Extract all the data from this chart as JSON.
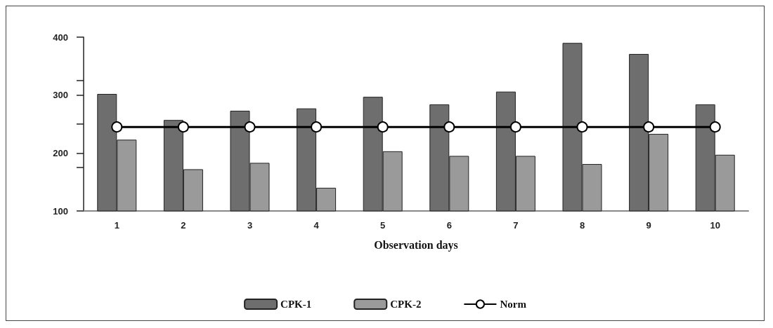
{
  "chart_data": {
    "type": "bar",
    "xlabel": "Observation days",
    "categories": [
      "1",
      "2",
      "3",
      "4",
      "5",
      "6",
      "7",
      "8",
      "9",
      "10"
    ],
    "series": [
      {
        "name": "CPK-1",
        "color": "#6e6e6e",
        "values": [
          302,
          257,
          273,
          277,
          297,
          284,
          306,
          390,
          371,
          284
        ]
      },
      {
        "name": "CPK-2",
        "color": "#9a9a9a",
        "values": [
          223,
          172,
          183,
          140,
          203,
          195,
          195,
          181,
          233,
          197
        ]
      },
      {
        "name": "Norm",
        "type": "line",
        "color": "#000000",
        "marker": "circle",
        "values": [
          245,
          245,
          245,
          245,
          245,
          245,
          245,
          245,
          245,
          245
        ]
      }
    ],
    "ylim": [
      100,
      400
    ],
    "yticks": [
      100,
      {
        "value": 175,
        "label": null
      },
      200,
      {
        "value": 250,
        "label": null
      },
      300,
      {
        "value": 325,
        "label": null
      },
      400
    ],
    "grid": false,
    "legend": "bottom"
  }
}
